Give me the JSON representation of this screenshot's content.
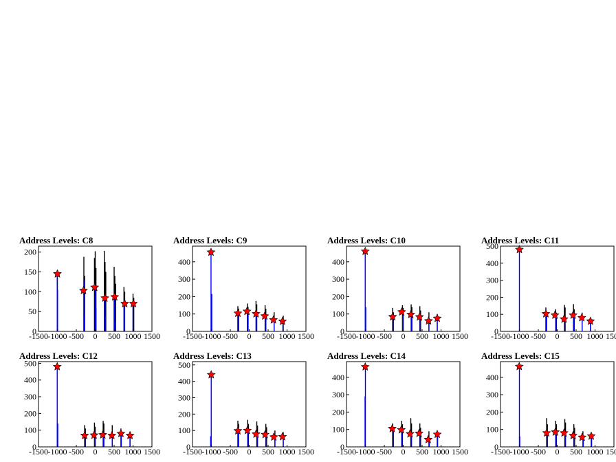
{
  "chart_data": [
    {
      "type": "bar",
      "title": "Address Levels: C8",
      "xlim": [
        -1500,
        1500
      ],
      "ylim": [
        0,
        215
      ],
      "xticks": [
        -1500,
        -1000,
        -500,
        0,
        500,
        1000,
        1500
      ],
      "xtick_labels": [
        "-1500",
        "-1000",
        "-500",
        "0",
        "500",
        "1000",
        "1500"
      ],
      "yticks": [
        0,
        50,
        100,
        150,
        200
      ],
      "black_spikes": [
        {
          "x": -1000,
          "y": 150
        },
        {
          "x": -300,
          "y": 188
        },
        {
          "x": -280,
          "y": 140
        },
        {
          "x": -20,
          "y": 185
        },
        {
          "x": 0,
          "y": 202
        },
        {
          "x": 20,
          "y": 160
        },
        {
          "x": 240,
          "y": 203
        },
        {
          "x": 260,
          "y": 175
        },
        {
          "x": 280,
          "y": 150
        },
        {
          "x": 500,
          "y": 163
        },
        {
          "x": 520,
          "y": 140
        },
        {
          "x": 540,
          "y": 120
        },
        {
          "x": 760,
          "y": 112
        },
        {
          "x": 780,
          "y": 100
        },
        {
          "x": 1000,
          "y": 95
        },
        {
          "x": 1020,
          "y": 85
        }
      ],
      "blue_spikes": [
        {
          "x": -1005,
          "y": 145
        },
        {
          "x": -995,
          "y": 105
        },
        {
          "x": -300,
          "y": 130
        },
        {
          "x": -280,
          "y": 40
        },
        {
          "x": 0,
          "y": 110
        },
        {
          "x": 20,
          "y": 60
        },
        {
          "x": 250,
          "y": 80
        },
        {
          "x": 270,
          "y": 40
        },
        {
          "x": 510,
          "y": 85
        },
        {
          "x": 530,
          "y": 25
        },
        {
          "x": 770,
          "y": 65
        },
        {
          "x": 1000,
          "y": 65
        }
      ],
      "peaks": [
        {
          "x": -1000,
          "y": 145
        },
        {
          "x": -310,
          "y": 103
        },
        {
          "x": -15,
          "y": 111
        },
        {
          "x": 255,
          "y": 84
        },
        {
          "x": 515,
          "y": 87
        },
        {
          "x": 780,
          "y": 70
        },
        {
          "x": 1010,
          "y": 70
        }
      ]
    },
    {
      "type": "bar",
      "title": "Address Levels: C9",
      "xlim": [
        -1500,
        1500
      ],
      "ylim": [
        0,
        490
      ],
      "xticks": [
        -1500,
        -1000,
        -500,
        0,
        500,
        1000,
        1500
      ],
      "xtick_labels": [
        "-1500",
        "-1000",
        "-500",
        "0",
        "500",
        "1000",
        "1500"
      ],
      "yticks": [
        0,
        100,
        200,
        300,
        400
      ],
      "black_spikes": [
        {
          "x": -300,
          "y": 145
        },
        {
          "x": -280,
          "y": 130
        },
        {
          "x": -50,
          "y": 160
        },
        {
          "x": -30,
          "y": 140
        },
        {
          "x": 180,
          "y": 175
        },
        {
          "x": 200,
          "y": 155
        },
        {
          "x": 420,
          "y": 150
        },
        {
          "x": 440,
          "y": 130
        },
        {
          "x": 660,
          "y": 110
        },
        {
          "x": 900,
          "y": 90
        }
      ],
      "blue_spikes": [
        {
          "x": -1010,
          "y": 460
        },
        {
          "x": -990,
          "y": 215
        },
        {
          "x": -300,
          "y": 110
        },
        {
          "x": -40,
          "y": 120
        },
        {
          "x": 190,
          "y": 105
        },
        {
          "x": 430,
          "y": 90
        },
        {
          "x": 660,
          "y": 65
        },
        {
          "x": 890,
          "y": 60
        }
      ],
      "peaks": [
        {
          "x": -1010,
          "y": 455
        },
        {
          "x": -300,
          "y": 104
        },
        {
          "x": -60,
          "y": 115
        },
        {
          "x": 180,
          "y": 101
        },
        {
          "x": 410,
          "y": 88
        },
        {
          "x": 640,
          "y": 66
        },
        {
          "x": 880,
          "y": 58
        }
      ]
    },
    {
      "type": "bar",
      "title": "Address Levels: C10",
      "xlim": [
        -1500,
        1500
      ],
      "ylim": [
        0,
        490
      ],
      "xticks": [
        -1500,
        -1000,
        -500,
        0,
        500,
        1000,
        1500
      ],
      "xtick_labels": [
        "-1500",
        "-1000",
        "-500",
        "0",
        "500",
        "1000",
        "1500"
      ],
      "yticks": [
        0,
        100,
        200,
        300,
        400
      ],
      "black_spikes": [
        {
          "x": -280,
          "y": 135
        },
        {
          "x": -260,
          "y": 110
        },
        {
          "x": -20,
          "y": 150
        },
        {
          "x": 0,
          "y": 135
        },
        {
          "x": 210,
          "y": 155
        },
        {
          "x": 230,
          "y": 140
        },
        {
          "x": 440,
          "y": 145
        },
        {
          "x": 460,
          "y": 120
        },
        {
          "x": 680,
          "y": 110
        },
        {
          "x": 900,
          "y": 100
        }
      ],
      "blue_spikes": [
        {
          "x": -1005,
          "y": 465
        },
        {
          "x": -990,
          "y": 140
        },
        {
          "x": -270,
          "y": 85
        },
        {
          "x": -10,
          "y": 115
        },
        {
          "x": 220,
          "y": 100
        },
        {
          "x": 450,
          "y": 80
        },
        {
          "x": 680,
          "y": 60
        },
        {
          "x": 900,
          "y": 75
        }
      ],
      "peaks": [
        {
          "x": -1005,
          "y": 460
        },
        {
          "x": -280,
          "y": 84
        },
        {
          "x": -40,
          "y": 112
        },
        {
          "x": 200,
          "y": 97
        },
        {
          "x": 430,
          "y": 83
        },
        {
          "x": 670,
          "y": 60
        },
        {
          "x": 900,
          "y": 75
        }
      ]
    },
    {
      "type": "bar",
      "title": "Address Levels: C11",
      "xlim": [
        -1500,
        1500
      ],
      "ylim": [
        0,
        500
      ],
      "xticks": [
        -1500,
        -1000,
        -500,
        0,
        500,
        1000,
        1500
      ],
      "xtick_labels": [
        "-1500",
        "-1000",
        "-500",
        "0",
        "500",
        "1000",
        "1500"
      ],
      "yticks": [
        0,
        100,
        200,
        300,
        400,
        500
      ],
      "black_spikes": [
        {
          "x": -300,
          "y": 140
        },
        {
          "x": -280,
          "y": 115
        },
        {
          "x": -40,
          "y": 130
        },
        {
          "x": -20,
          "y": 110
        },
        {
          "x": 190,
          "y": 155
        },
        {
          "x": 210,
          "y": 140
        },
        {
          "x": 430,
          "y": 160
        },
        {
          "x": 450,
          "y": 130
        },
        {
          "x": 660,
          "y": 110
        },
        {
          "x": 880,
          "y": 80
        }
      ],
      "blue_spikes": [
        {
          "x": -1000,
          "y": 485
        },
        {
          "x": -290,
          "y": 100
        },
        {
          "x": -30,
          "y": 90
        },
        {
          "x": 200,
          "y": 75
        },
        {
          "x": 440,
          "y": 95
        },
        {
          "x": 660,
          "y": 80
        },
        {
          "x": 880,
          "y": 60
        }
      ],
      "peaks": [
        {
          "x": -1000,
          "y": 480
        },
        {
          "x": -300,
          "y": 103
        },
        {
          "x": -60,
          "y": 95
        },
        {
          "x": 180,
          "y": 72
        },
        {
          "x": 420,
          "y": 95
        },
        {
          "x": 650,
          "y": 80
        },
        {
          "x": 880,
          "y": 60
        }
      ]
    },
    {
      "type": "bar",
      "title": "Address Levels: C12",
      "xlim": [
        -1500,
        1500
      ],
      "ylim": [
        0,
        510
      ],
      "xticks": [
        -1500,
        -1000,
        -500,
        0,
        500,
        1000,
        1500
      ],
      "xtick_labels": [
        "-1500",
        "-1000",
        "-500",
        "0",
        "500",
        "1000",
        "1500"
      ],
      "yticks": [
        0,
        100,
        200,
        300,
        400,
        500
      ],
      "black_spikes": [
        {
          "x": -280,
          "y": 130
        },
        {
          "x": -260,
          "y": 110
        },
        {
          "x": -20,
          "y": 145
        },
        {
          "x": 0,
          "y": 120
        },
        {
          "x": 210,
          "y": 155
        },
        {
          "x": 230,
          "y": 140
        },
        {
          "x": 450,
          "y": 130
        },
        {
          "x": 680,
          "y": 110
        },
        {
          "x": 920,
          "y": 90
        }
      ],
      "blue_spikes": [
        {
          "x": -1005,
          "y": 485
        },
        {
          "x": -990,
          "y": 140
        },
        {
          "x": -270,
          "y": 70
        },
        {
          "x": -10,
          "y": 75
        },
        {
          "x": 220,
          "y": 75
        },
        {
          "x": 450,
          "y": 65
        },
        {
          "x": 690,
          "y": 80
        },
        {
          "x": 920,
          "y": 70
        }
      ],
      "peaks": [
        {
          "x": -1005,
          "y": 480
        },
        {
          "x": -280,
          "y": 68
        },
        {
          "x": -30,
          "y": 70
        },
        {
          "x": 200,
          "y": 72
        },
        {
          "x": 440,
          "y": 68
        },
        {
          "x": 680,
          "y": 80
        },
        {
          "x": 920,
          "y": 68
        }
      ]
    },
    {
      "type": "bar",
      "title": "Address Levels: C13",
      "xlim": [
        -1500,
        1500
      ],
      "ylim": [
        0,
        520
      ],
      "xticks": [
        -1500,
        -1000,
        -500,
        0,
        500,
        1000,
        1500
      ],
      "xtick_labels": [
        "-1500",
        "-1000",
        "-500",
        "0",
        "500",
        "1000",
        "1500"
      ],
      "yticks": [
        0,
        100,
        200,
        300,
        400,
        500
      ],
      "black_spikes": [
        {
          "x": -300,
          "y": 160
        },
        {
          "x": -280,
          "y": 140
        },
        {
          "x": -40,
          "y": 165
        },
        {
          "x": -20,
          "y": 140
        },
        {
          "x": 200,
          "y": 155
        },
        {
          "x": 220,
          "y": 130
        },
        {
          "x": 440,
          "y": 140
        },
        {
          "x": 460,
          "y": 120
        },
        {
          "x": 680,
          "y": 100
        },
        {
          "x": 900,
          "y": 90
        }
      ],
      "blue_spikes": [
        {
          "x": -1005,
          "y": 440
        },
        {
          "x": -1020,
          "y": 65
        },
        {
          "x": -290,
          "y": 100
        },
        {
          "x": -30,
          "y": 95
        },
        {
          "x": 210,
          "y": 80
        },
        {
          "x": 450,
          "y": 75
        },
        {
          "x": 680,
          "y": 60
        },
        {
          "x": 900,
          "y": 65
        }
      ],
      "peaks": [
        {
          "x": -1005,
          "y": 440
        },
        {
          "x": -300,
          "y": 98
        },
        {
          "x": -50,
          "y": 100
        },
        {
          "x": 180,
          "y": 78
        },
        {
          "x": 420,
          "y": 75
        },
        {
          "x": 650,
          "y": 60
        },
        {
          "x": 880,
          "y": 62
        }
      ]
    },
    {
      "type": "bar",
      "title": "Address Levels: C14",
      "xlim": [
        -1500,
        1500
      ],
      "ylim": [
        0,
        490
      ],
      "xticks": [
        -1500,
        -1000,
        -500,
        0,
        500,
        1000,
        1500
      ],
      "xtick_labels": [
        "-1500",
        "-1000",
        "-500",
        "0",
        "500",
        "1000",
        "1500"
      ],
      "yticks": [
        0,
        100,
        200,
        300,
        400
      ],
      "black_spikes": [
        {
          "x": -280,
          "y": 135
        },
        {
          "x": -260,
          "y": 115
        },
        {
          "x": -40,
          "y": 150
        },
        {
          "x": -20,
          "y": 130
        },
        {
          "x": 200,
          "y": 165
        },
        {
          "x": 220,
          "y": 135
        },
        {
          "x": 440,
          "y": 135
        },
        {
          "x": 460,
          "y": 110
        },
        {
          "x": 680,
          "y": 90
        },
        {
          "x": 900,
          "y": 85
        }
      ],
      "blue_spikes": [
        {
          "x": -1000,
          "y": 465
        },
        {
          "x": -1010,
          "y": 290
        },
        {
          "x": -270,
          "y": 100
        },
        {
          "x": -30,
          "y": 100
        },
        {
          "x": 210,
          "y": 75
        },
        {
          "x": 450,
          "y": 80
        },
        {
          "x": 690,
          "y": 45
        },
        {
          "x": 910,
          "y": 70
        }
      ],
      "peaks": [
        {
          "x": -1005,
          "y": 460
        },
        {
          "x": -290,
          "y": 105
        },
        {
          "x": -50,
          "y": 98
        },
        {
          "x": 180,
          "y": 75
        },
        {
          "x": 420,
          "y": 78
        },
        {
          "x": 660,
          "y": 42
        },
        {
          "x": 900,
          "y": 72
        }
      ]
    },
    {
      "type": "bar",
      "title": "Address Levels: C15",
      "xlim": [
        -1500,
        1500
      ],
      "ylim": [
        0,
        490
      ],
      "xticks": [
        -1500,
        -1000,
        -500,
        0,
        500,
        1000,
        1500
      ],
      "xtick_labels": [
        "-1500",
        "-1000",
        "-500",
        "0",
        "500",
        "1000",
        "1500"
      ],
      "yticks": [
        0,
        100,
        200,
        300,
        400
      ],
      "black_spikes": [
        {
          "x": -280,
          "y": 165
        },
        {
          "x": -260,
          "y": 130
        },
        {
          "x": -40,
          "y": 150
        },
        {
          "x": -20,
          "y": 130
        },
        {
          "x": 200,
          "y": 160
        },
        {
          "x": 220,
          "y": 140
        },
        {
          "x": 440,
          "y": 130
        },
        {
          "x": 460,
          "y": 110
        },
        {
          "x": 680,
          "y": 90
        },
        {
          "x": 900,
          "y": 80
        }
      ],
      "blue_spikes": [
        {
          "x": -1000,
          "y": 465
        },
        {
          "x": -990,
          "y": 60
        },
        {
          "x": -270,
          "y": 80
        },
        {
          "x": -30,
          "y": 90
        },
        {
          "x": 210,
          "y": 80
        },
        {
          "x": 450,
          "y": 65
        },
        {
          "x": 690,
          "y": 55
        },
        {
          "x": 910,
          "y": 65
        }
      ],
      "peaks": [
        {
          "x": -1005,
          "y": 462
        },
        {
          "x": -280,
          "y": 80
        },
        {
          "x": -50,
          "y": 85
        },
        {
          "x": 180,
          "y": 80
        },
        {
          "x": 420,
          "y": 65
        },
        {
          "x": 660,
          "y": 55
        },
        {
          "x": 900,
          "y": 62
        }
      ]
    }
  ]
}
